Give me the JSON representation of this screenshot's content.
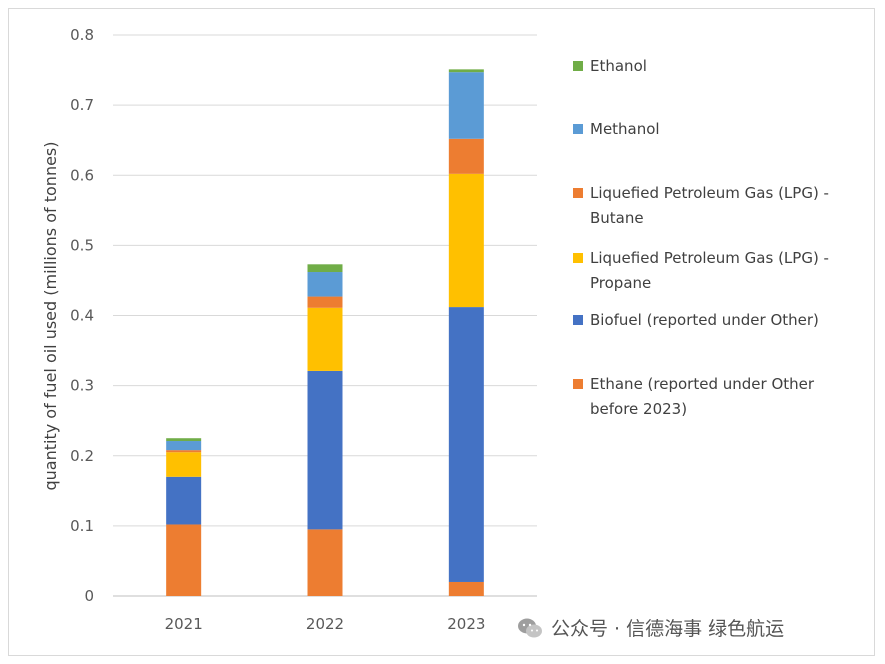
{
  "chart_data": {
    "type": "bar",
    "stacked": true,
    "categories": [
      "2021",
      "2022",
      "2023"
    ],
    "ylabel": "quantity of fuel oil used (millions of tonnes)",
    "ylim": [
      0,
      0.8
    ],
    "yticks": [
      "0",
      "0.1",
      "0.2",
      "0.3",
      "0.4",
      "0.5",
      "0.6",
      "0.7",
      "0.8"
    ],
    "grid": true,
    "legend_position": "right",
    "series": [
      {
        "name": "Ethane (reported under Other before 2023)",
        "legend_lines": [
          "Ethane (reported under Other",
          "before 2023)"
        ],
        "color": "#ED7D31",
        "values": [
          0.102,
          0.095,
          0.02
        ]
      },
      {
        "name": "Biofuel (reported under Other)",
        "legend_lines": [
          "Biofuel (reported under Other)"
        ],
        "color": "#4472C4",
        "values": [
          0.068,
          0.226,
          0.392
        ]
      },
      {
        "name": "Liquefied Petroleum Gas (LPG) - Propane",
        "legend_lines": [
          "Liquefied Petroleum Gas (LPG) -",
          "Propane"
        ],
        "color": "#FFC000",
        "values": [
          0.035,
          0.09,
          0.19
        ]
      },
      {
        "name": "Liquefied Petroleum Gas (LPG) - Butane",
        "legend_lines": [
          "Liquefied Petroleum Gas (LPG) -",
          "Butane"
        ],
        "color": "#ED7D31",
        "values": [
          0.003,
          0.016,
          0.05
        ]
      },
      {
        "name": "Methanol",
        "legend_lines": [
          "Methanol"
        ],
        "color": "#5B9BD5",
        "values": [
          0.013,
          0.035,
          0.095
        ]
      },
      {
        "name": "Ethanol",
        "legend_lines": [
          "Ethanol"
        ],
        "color": "#70AD47",
        "values": [
          0.004,
          0.011,
          0.004
        ]
      }
    ]
  },
  "watermark": {
    "text": "公众号 · 信德海事 绿色航运",
    "icon": "wechat-icon"
  }
}
